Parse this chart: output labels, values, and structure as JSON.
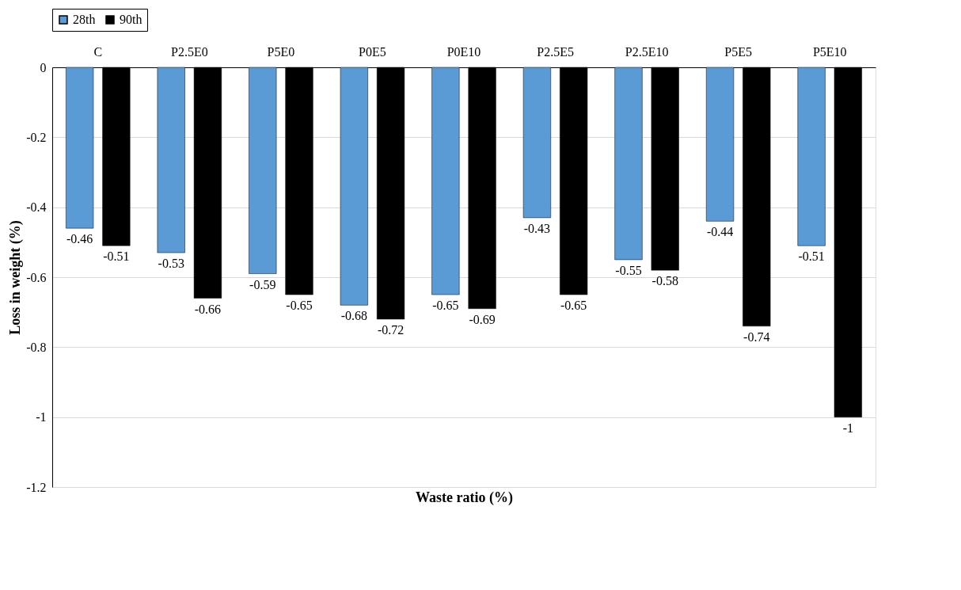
{
  "chart_data": {
    "type": "bar",
    "xlabel": "Waste ratio (%)",
    "ylabel": "Loss in weight (%)",
    "categories": [
      "C",
      "P2.5E0",
      "P5E0",
      "P0E5",
      "P0E10",
      "P2.5E5",
      "P2.5E10",
      "P5E5",
      "P5E10"
    ],
    "series": [
      {
        "name": "28th",
        "color": "#5b9bd5",
        "values": [
          -0.46,
          -0.53,
          -0.59,
          -0.68,
          -0.65,
          -0.43,
          -0.55,
          -0.44,
          -0.51
        ]
      },
      {
        "name": "90th",
        "color": "#000000",
        "values": [
          -0.51,
          -0.66,
          -0.65,
          -0.72,
          -0.69,
          -0.65,
          -0.58,
          -0.74,
          -1
        ]
      }
    ],
    "ylim": [
      -1.2,
      0
    ],
    "yticks": [
      0,
      -0.2,
      -0.4,
      -0.6,
      -0.8,
      -1,
      -1.2
    ],
    "grid": "y",
    "legend": "top",
    "data_labels": true
  }
}
